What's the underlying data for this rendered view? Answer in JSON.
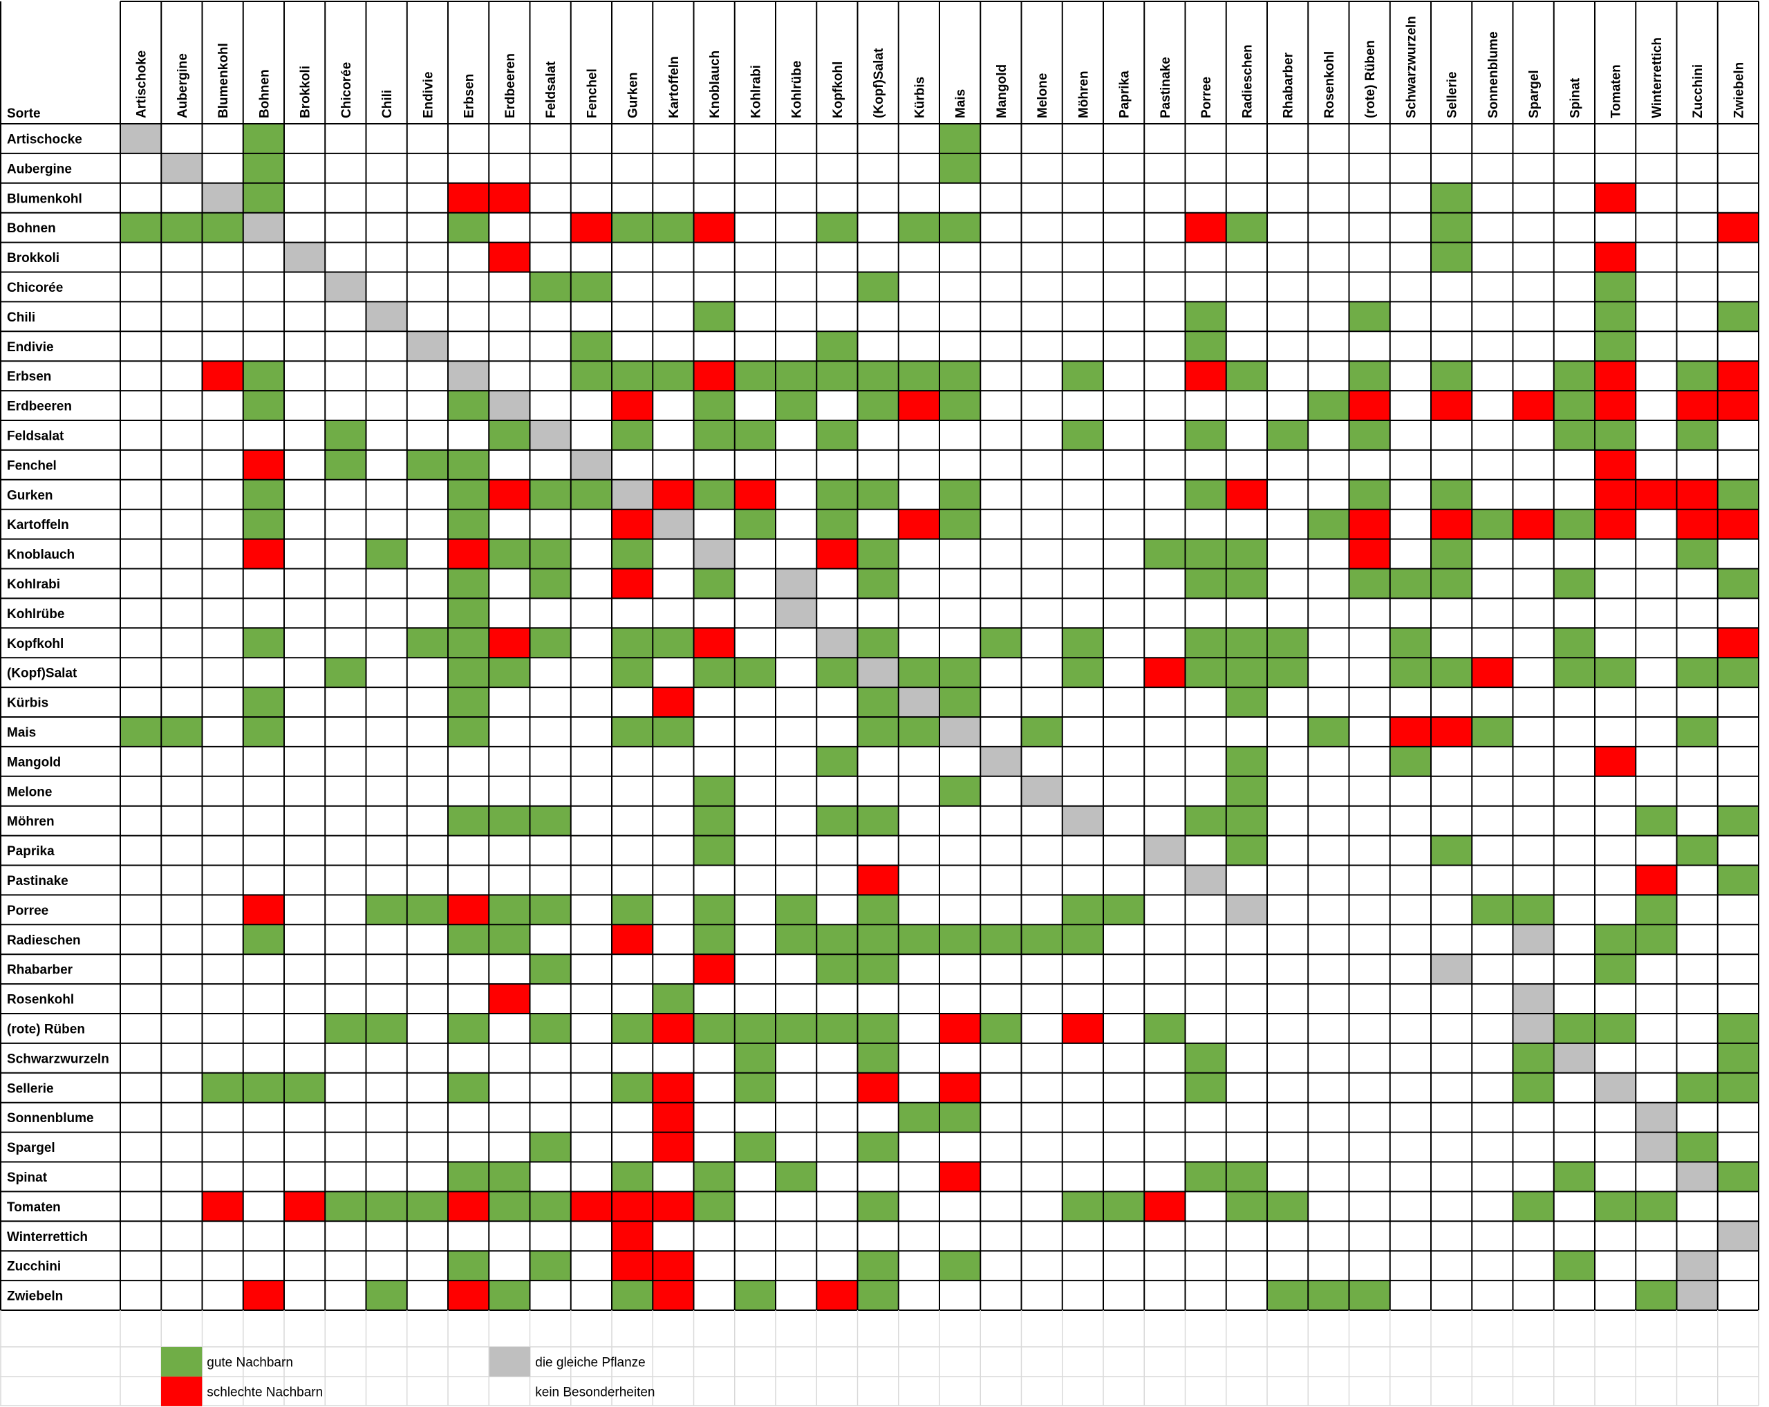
{
  "chart_data": {
    "type": "heatmap",
    "corner_label": "Sorte",
    "columns": [
      "Artischoke",
      "Aubergine",
      "Blumenkohl",
      "Bohnen",
      "Brokkoli",
      "Chicorée",
      "Chili",
      "Endivie",
      "Erbsen",
      "Erdbeeren",
      "Feldsalat",
      "Fenchel",
      "Gurken",
      "Kartoffeln",
      "Knoblauch",
      "Kohlrabi",
      "Kohlrübe",
      "Kopfkohl",
      "(Kopf)Salat",
      "Kürbis",
      "Mais",
      "Mangold",
      "Melone",
      "Möhren",
      "Paprika",
      "Pastinake",
      "Porree",
      "Radieschen",
      "Rhabarber",
      "Rosenkohl",
      "(rote) Rüben",
      "Schwarzwurzeln",
      "Sellerie",
      "Sonnenblume",
      "Spargel",
      "Spinat",
      "Tomaten",
      "Winterrettich",
      "Zucchini",
      "Zwiebeln"
    ],
    "rows": [
      "Artischocke",
      "Aubergine",
      "Blumenkohl",
      "Bohnen",
      "Brokkoli",
      "Chicorée",
      "Chili",
      "Endivie",
      "Erbsen",
      "Erdbeeren",
      "Feldsalat",
      "Fenchel",
      "Gurken",
      "Kartoffeln",
      "Knoblauch",
      "Kohlrabi",
      "Kohlrübe",
      "Kopfkohl",
      "(Kopf)Salat",
      "Kürbis",
      "Mais",
      "Mangold",
      "Melone",
      "Möhren",
      "Paprika",
      "Pastinake",
      "Porree",
      "Radieschen",
      "Rhabarber",
      "Rosenkohl",
      "(rote) Rüben",
      "Schwarzwurzeln",
      "Sellerie",
      "Sonnenblume",
      "Spargel",
      "Spinat",
      "Tomaten",
      "Winterrettich",
      "Zucchini",
      "Zwiebeln"
    ],
    "encoding": {
      "G": "gute Nachbarn",
      "R": "schlechte Nachbarn",
      "S": "die gleiche Pflanze",
      ".": "kein Besonderheiten"
    },
    "matrix": [
      "S..G................G...................",
      ".S.G................G...................",
      "..SG....RR......................G...R...",
      "GGGS....G..RGGR..G.GG.....RG....G......R",
      "....S....R......................G...R...",
      ".....S....GG......G.................G...",
      "......S.......G...........G...G.....G..G",
      ".......S...G.....G........G.........G...",
      "..RG....S..GGGRGGGGGG..G..RG..G.G..GR.GR",
      "...G....GS..R.G.G.GRG........GR.R.RGR.RR",
      ".....G...GS.G.GG.G.....G..G.G.G....GG.G.",
      "...R.G.GG..S........................R...",
      "...G....GRGGSRGR.GG.G.....GR..G.G...RRRG",
      "...G....G...RS.G.G.RG........GR.RGRGR.RR",
      "...R..G.RGG.G.S..RG......GGG..R.G.....G.",
      "........G.G.R.G.S.G.......GG..GGG..G...G",
      "........G.......S.......................",
      "...G...GGRG.GGR..SG..G.G..GGG..G...G...R",
      ".....G..GG..G.GG.GSGG..G.RGGG..GGR.GG.GG",
      "...G....G....R....GSG......G............",
      "GG.G....G...GG....GGS.G......G.RRG....G.",
      ".................G...S.....G...G....R...",
      "..............G.....G.S....G............",
      "........GGG...G..GG....S..GG.........G.G",
      "..............G..........S.G....G.....G.",
      "..................R.......S..........R.G",
      "...R..GGRGG.G.G.G.G....GG..S.....GG..G..",
      "...G....GG..R.G.GGGGGGGG..........S.GG..",
      "..........G...R..GG.............S...G...",
      ".........R...G....................S.....",
      ".....GG.G.G.GRGGGGG.RG.R.G........SGG..G",
      "...............G..G.......G.......GS...G",
      "..GGG...G...GR.G..R.R.....G.......G.S.GG",
      ".............R.....GG................S..",
      "..........G..R.G..G..................SG.",
      "........GG..G.G.G...R.....GG.......G..SGG",
      "..R.RGGGRGGRRRG...G....GGR.GG.....G.GG..S",
      "............R..........................S",
      "........G.G.RR....G.G..............G..S.",
      "...R..G.RG..GR.G.RG.........GGG......GS"
    ],
    "legend": [
      {
        "color": "#70ad47",
        "label": "gute Nachbarn"
      },
      {
        "color": "#ff0000",
        "label": "schlechte Nachbarn"
      },
      {
        "color": "#bfbfbf",
        "label": "die gleiche Pflanze"
      },
      {
        "color": "#ffffff",
        "label": "kein Besonderheiten"
      }
    ],
    "colors": {
      "G": "#70ad47",
      "R": "#ff0000",
      "S": "#bfbfbf",
      ".": "#ffffff",
      "grid": "#000000",
      "footer_grid": "#d9d9d9"
    }
  }
}
